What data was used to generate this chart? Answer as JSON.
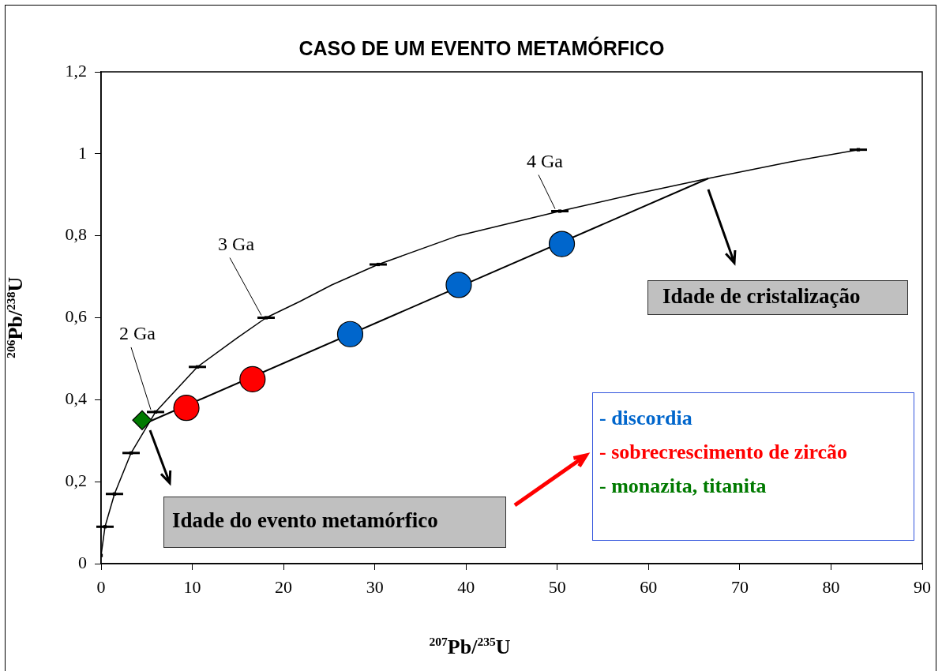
{
  "chart_data": {
    "type": "scatter",
    "title": "CASO DE UM EVENTO METAMÓRFICO",
    "xlabel": "$^{207}$Pb/$^{235}$U",
    "ylabel": "$^{206}$Pb/$^{238}$U",
    "xlim": [
      0,
      90
    ],
    "xticks": [
      0,
      10,
      20,
      30,
      40,
      50,
      60,
      70,
      80,
      90
    ],
    "ylim": [
      0,
      1.2
    ],
    "yticks": [
      0,
      {
        "value": 0.2,
        "label": "0,2"
      },
      {
        "value": 0.4,
        "label": "0,4"
      },
      {
        "value": 0.6,
        "label": "0,6"
      },
      {
        "value": 0.8,
        "label": "0,8"
      },
      1,
      {
        "value": 1.2,
        "label": "1,2"
      }
    ],
    "grid": false,
    "legend": "bottom right",
    "series": [
      {
        "type": "line",
        "color": "#000000",
        "marker": "none",
        "x": [
          0,
          0.43,
          1.47,
          3.29,
          5.97,
          10.56,
          14.88,
          18.09,
          21.81,
          25.27,
          30.37,
          39.11,
          50.28,
          58.15,
          66.55,
          75.46,
          82.99
        ],
        "values": [
          0.02,
          0.09,
          0.17,
          0.27,
          0.37,
          0.48,
          0.55,
          0.6,
          0.64,
          0.68,
          0.73,
          0.8,
          0.86,
          0.9,
          0.94,
          0.98,
          1.01
        ]
      },
      {
        "type": "scatter",
        "color": "#000000",
        "marker": "square",
        "x": [
          0,
          0.43,
          1.47,
          3.29,
          5.97,
          10.56,
          18.09,
          30.37,
          50.28,
          82.99
        ],
        "values": [
          0.02,
          0.09,
          0.17,
          0.27,
          0.37,
          0.48,
          0.6,
          0.73,
          0.86,
          1.01
        ],
        "xerrors": [
          null,
          [
            -0.52,
            1.38
          ],
          [
            0.52,
            2.42
          ],
          [
            2.34,
            4.24
          ],
          [
            5.02,
            6.92
          ],
          [
            9.61,
            11.51
          ],
          [
            17.14,
            19.04
          ],
          [
            29.42,
            31.32
          ],
          [
            49.33,
            51.23
          ],
          [
            82.04,
            83.94
          ]
        ]
      },
      {
        "type": "line",
        "color": "#000000",
        "marker": "none",
        "x": [
          4.6,
          66.55
        ],
        "values": [
          0.34,
          0.94
        ]
      },
      {
        "type": "scatter",
        "name": "- discordia",
        "color": "#0066cc",
        "marker": "circle",
        "x": [
          27.3,
          39.2,
          50.5
        ],
        "values": [
          0.56,
          0.68,
          0.78
        ]
      },
      {
        "type": "scatter",
        "name": "- sobrecrescimento de zircão",
        "color": "#ff0000",
        "marker": "circle",
        "x": [
          9.35,
          16.6
        ],
        "values": [
          0.38,
          0.45
        ]
      },
      {
        "type": "scatter",
        "name": "- monazita, titanita",
        "color": "#007a00",
        "marker": "diamond",
        "x": [
          4.5
        ],
        "values": [
          0.35
        ]
      }
    ],
    "annotations": [
      {
        "text": "4 Ga",
        "x": 50.28,
        "y": 0.86
      },
      {
        "text": "3 Ga",
        "x": 18.09,
        "y": 0.6
      },
      {
        "text": "2 Ga",
        "x": 5.97,
        "y": 0.37
      },
      "Idade de cristalização",
      "Idade do evento metamórfico"
    ]
  }
}
